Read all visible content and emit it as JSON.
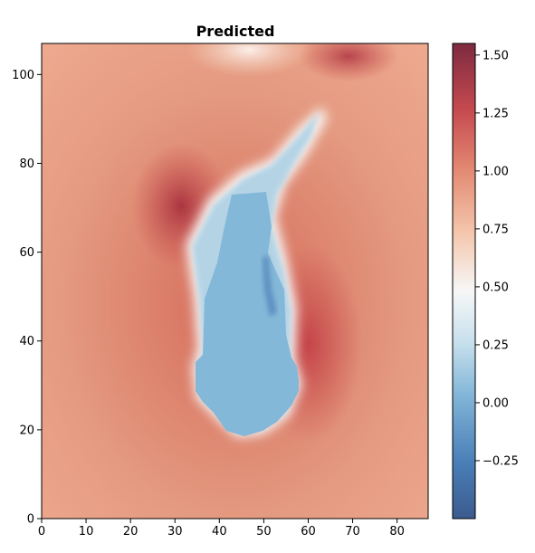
{
  "chart_data": {
    "type": "heatmap",
    "title": "Predicted",
    "xlabel": "",
    "ylabel": "",
    "xlim": [
      0,
      87
    ],
    "ylim": [
      0,
      107
    ],
    "xticks": [
      0,
      10,
      20,
      30,
      40,
      50,
      60,
      70,
      80
    ],
    "yticks": [
      0,
      20,
      40,
      60,
      80,
      100
    ],
    "colormap": "RdBu_r",
    "colorbar": {
      "min": -0.5,
      "max": 1.55,
      "ticks": [
        -0.25,
        0.0,
        0.25,
        0.5,
        0.75,
        1.0,
        1.25,
        1.5
      ],
      "tick_labels": [
        "−0.25",
        "0.00",
        "0.25",
        "0.50",
        "0.75",
        "1.00",
        "1.25",
        "1.50"
      ]
    },
    "field_description_values": {
      "background": 1.0,
      "plume_interior": -0.05,
      "max_near_plume_edge": 1.5
    }
  }
}
